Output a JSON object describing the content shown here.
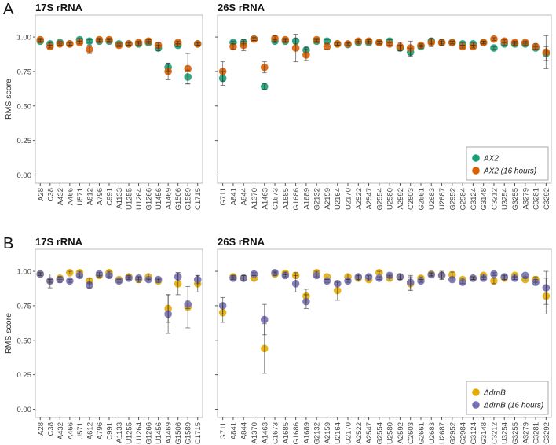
{
  "figure": {
    "panels": [
      "A",
      "B"
    ]
  },
  "chart_data": [
    {
      "type": "scatter",
      "panel": "A",
      "title": "17S rRNA",
      "ylabel": "RMS score",
      "xlabel": "",
      "ylim": [
        0,
        1
      ],
      "yticks": [
        "0.00",
        "0.25",
        "0.50",
        "0.75",
        "1.00"
      ],
      "grid": false,
      "categories": [
        "A28",
        "C38",
        "A432",
        "A466",
        "U571",
        "A612",
        "A796",
        "C991",
        "A1133",
        "U1255",
        "U1264",
        "G1266",
        "U1456",
        "A1469",
        "G1506",
        "G1589",
        "C1715"
      ],
      "series": [
        {
          "name": "AX2",
          "color": "#1b9e77",
          "values": [
            0.97,
            0.95,
            0.96,
            0.95,
            0.98,
            0.97,
            0.97,
            0.97,
            0.95,
            0.95,
            0.95,
            0.96,
            0.92,
            0.78,
            0.94,
            0.71,
            0.95
          ],
          "errors": [
            0.01,
            0.01,
            0.01,
            0.01,
            0.01,
            0.01,
            0.01,
            0.01,
            0.01,
            0.01,
            0.01,
            0.01,
            0.02,
            0.03,
            0.01,
            0.05,
            0.01
          ]
        },
        {
          "name": "AX2 (16 hours)",
          "color": "#d95f02",
          "values": [
            0.98,
            0.93,
            0.95,
            0.95,
            0.96,
            0.91,
            0.98,
            0.98,
            0.94,
            0.95,
            0.96,
            0.97,
            0.94,
            0.75,
            0.96,
            0.77,
            0.95
          ],
          "errors": [
            0.01,
            0.01,
            0.01,
            0.01,
            0.01,
            0.03,
            0.01,
            0.01,
            0.01,
            0.01,
            0.01,
            0.01,
            0.02,
            0.06,
            0.01,
            0.11,
            0.01
          ]
        }
      ]
    },
    {
      "type": "scatter",
      "panel": "A",
      "title": "26S rRNA",
      "ylabel": "",
      "xlabel": "",
      "ylim": [
        0,
        1
      ],
      "grid": false,
      "legend": "bottom-right",
      "categories": [
        "G711",
        "A841",
        "A844",
        "A1370",
        "A1463",
        "C1673",
        "A1685",
        "G1686",
        "A1689",
        "G2132",
        "A2159",
        "U2164",
        "U2170",
        "A2522",
        "A2547",
        "G2554",
        "U2580",
        "A2592",
        "C2603",
        "G2661",
        "U2683",
        "U2687",
        "G2952",
        "G2984",
        "G3124",
        "G3148",
        "C3212",
        "U3254",
        "G3255",
        "A3279",
        "C3281",
        "C3292"
      ],
      "series": [
        {
          "name": "AX2",
          "color": "#1b9e77",
          "values": [
            0.7,
            0.96,
            0.96,
            0.985,
            0.64,
            0.97,
            0.97,
            0.97,
            0.905,
            0.97,
            0.97,
            0.95,
            0.945,
            0.96,
            0.96,
            0.96,
            0.97,
            0.92,
            0.89,
            0.93,
            0.97,
            0.96,
            0.96,
            0.95,
            0.95,
            0.96,
            0.92,
            0.95,
            0.95,
            0.95,
            0.92,
            0.88
          ],
          "errors": [
            0.05,
            0.01,
            0.01,
            0.01,
            0.02,
            0.01,
            0.01,
            0.02,
            0.02,
            0.01,
            0.01,
            0.01,
            0.01,
            0.01,
            0.01,
            0.01,
            0.01,
            0.02,
            0.03,
            0.01,
            0.02,
            0.01,
            0.01,
            0.01,
            0.01,
            0.01,
            0.01,
            0.01,
            0.01,
            0.01,
            0.01,
            0.05
          ]
        },
        {
          "name": "AX2 (16 hours)",
          "color": "#d95f02",
          "values": [
            0.75,
            0.93,
            0.94,
            0.985,
            0.78,
            0.99,
            0.98,
            0.92,
            0.87,
            0.98,
            0.93,
            0.95,
            0.95,
            0.97,
            0.97,
            0.96,
            0.95,
            0.93,
            0.92,
            0.94,
            0.96,
            0.96,
            0.96,
            0.93,
            0.93,
            0.96,
            0.985,
            0.97,
            0.96,
            0.96,
            0.93,
            0.89
          ],
          "errors": [
            0.07,
            0.02,
            0.04,
            0.01,
            0.04,
            0.02,
            0.01,
            0.1,
            0.04,
            0.01,
            0.02,
            0.01,
            0.01,
            0.01,
            0.01,
            0.01,
            0.01,
            0.03,
            0.05,
            0.01,
            0.03,
            0.02,
            0.01,
            0.01,
            0.01,
            0.01,
            0.01,
            0.01,
            0.01,
            0.01,
            0.02,
            0.12
          ]
        }
      ]
    },
    {
      "type": "scatter",
      "panel": "B",
      "title": "17S rRNA",
      "ylabel": "RMS score",
      "xlabel": "",
      "ylim": [
        0,
        1
      ],
      "yticks": [
        "0.00",
        "0.25",
        "0.50",
        "0.75",
        "1.00"
      ],
      "grid": false,
      "categories": [
        "A28",
        "C38",
        "A432",
        "A466",
        "U571",
        "A612",
        "A796",
        "C991",
        "A1133",
        "U1255",
        "U1264",
        "G1266",
        "U1456",
        "A1469",
        "G1506",
        "G1589",
        "C1715"
      ],
      "series": [
        {
          "name": "ΔdrnB",
          "color": "#e6ab02",
          "values": [
            0.98,
            0.93,
            0.95,
            0.99,
            0.99,
            0.93,
            0.97,
            0.99,
            0.94,
            0.96,
            0.94,
            0.96,
            0.93,
            0.73,
            0.91,
            0.74,
            0.91
          ],
          "errors": [
            0.01,
            0.01,
            0.01,
            0.01,
            0.01,
            0.02,
            0.01,
            0.01,
            0.01,
            0.01,
            0.02,
            0.02,
            0.01,
            0.1,
            0.08,
            0.15,
            0.06
          ]
        },
        {
          "name": "ΔdrnB (16 hours)",
          "color": "#7570b3",
          "values": [
            0.98,
            0.93,
            0.94,
            0.93,
            0.97,
            0.9,
            0.98,
            0.97,
            0.93,
            0.95,
            0.95,
            0.94,
            0.94,
            0.69,
            0.96,
            0.76,
            0.94
          ],
          "errors": [
            0.01,
            0.05,
            0.02,
            0.01,
            0.01,
            0.02,
            0.01,
            0.01,
            0.01,
            0.01,
            0.01,
            0.01,
            0.01,
            0.14,
            0.03,
            0.03,
            0.03
          ]
        }
      ]
    },
    {
      "type": "scatter",
      "panel": "B",
      "title": "26S rRNA",
      "ylabel": "",
      "xlabel": "",
      "ylim": [
        0,
        1
      ],
      "grid": false,
      "legend": "bottom-right",
      "categories": [
        "G711",
        "A841",
        "A844",
        "A1370",
        "A1463",
        "C1673",
        "A1685",
        "G1686",
        "A1689",
        "G2132",
        "A2159",
        "U2164",
        "U2170",
        "A2522",
        "A2547",
        "G2554",
        "U2580",
        "A2592",
        "C2603",
        "G2661",
        "U2683",
        "U2687",
        "G2952",
        "G2984",
        "G3124",
        "G3148",
        "C3212",
        "U3254",
        "G3255",
        "A3279",
        "C3281",
        "C3292"
      ],
      "series": [
        {
          "name": "ΔdrnB",
          "color": "#e6ab02",
          "values": [
            0.7,
            0.96,
            0.95,
            0.95,
            0.44,
            0.98,
            0.985,
            0.97,
            0.82,
            0.99,
            0.96,
            0.86,
            0.96,
            0.95,
            0.94,
            0.99,
            0.95,
            0.96,
            0.91,
            0.95,
            0.98,
            0.97,
            0.975,
            0.94,
            0.95,
            0.97,
            0.93,
            0.95,
            0.97,
            0.94,
            0.94,
            0.82
          ],
          "errors": [
            0.07,
            0.01,
            0.02,
            0.02,
            0.18,
            0.01,
            0.01,
            0.02,
            0.05,
            0.01,
            0.02,
            0.07,
            0.02,
            0.02,
            0.01,
            0.01,
            0.02,
            0.02,
            0.05,
            0.01,
            0.01,
            0.02,
            0.02,
            0.01,
            0.01,
            0.01,
            0.02,
            0.02,
            0.01,
            0.01,
            0.02,
            0.13
          ]
        },
        {
          "name": "ΔdrnB (16 hours)",
          "color": "#7570b3",
          "values": [
            0.75,
            0.95,
            0.95,
            0.98,
            0.65,
            0.99,
            0.97,
            0.91,
            0.78,
            0.97,
            0.93,
            0.91,
            0.93,
            0.96,
            0.96,
            0.95,
            0.97,
            0.96,
            0.92,
            0.93,
            0.975,
            0.97,
            0.94,
            0.92,
            0.95,
            0.95,
            0.98,
            0.96,
            0.95,
            0.97,
            0.92,
            0.88
          ],
          "errors": [
            0.06,
            0.01,
            0.02,
            0.01,
            0.11,
            0.01,
            0.01,
            0.06,
            0.05,
            0.01,
            0.01,
            0.01,
            0.01,
            0.02,
            0.01,
            0.01,
            0.01,
            0.02,
            0.05,
            0.01,
            0.01,
            0.03,
            0.01,
            0.01,
            0.01,
            0.01,
            0.01,
            0.02,
            0.01,
            0.01,
            0.02,
            0.12
          ]
        }
      ]
    }
  ]
}
